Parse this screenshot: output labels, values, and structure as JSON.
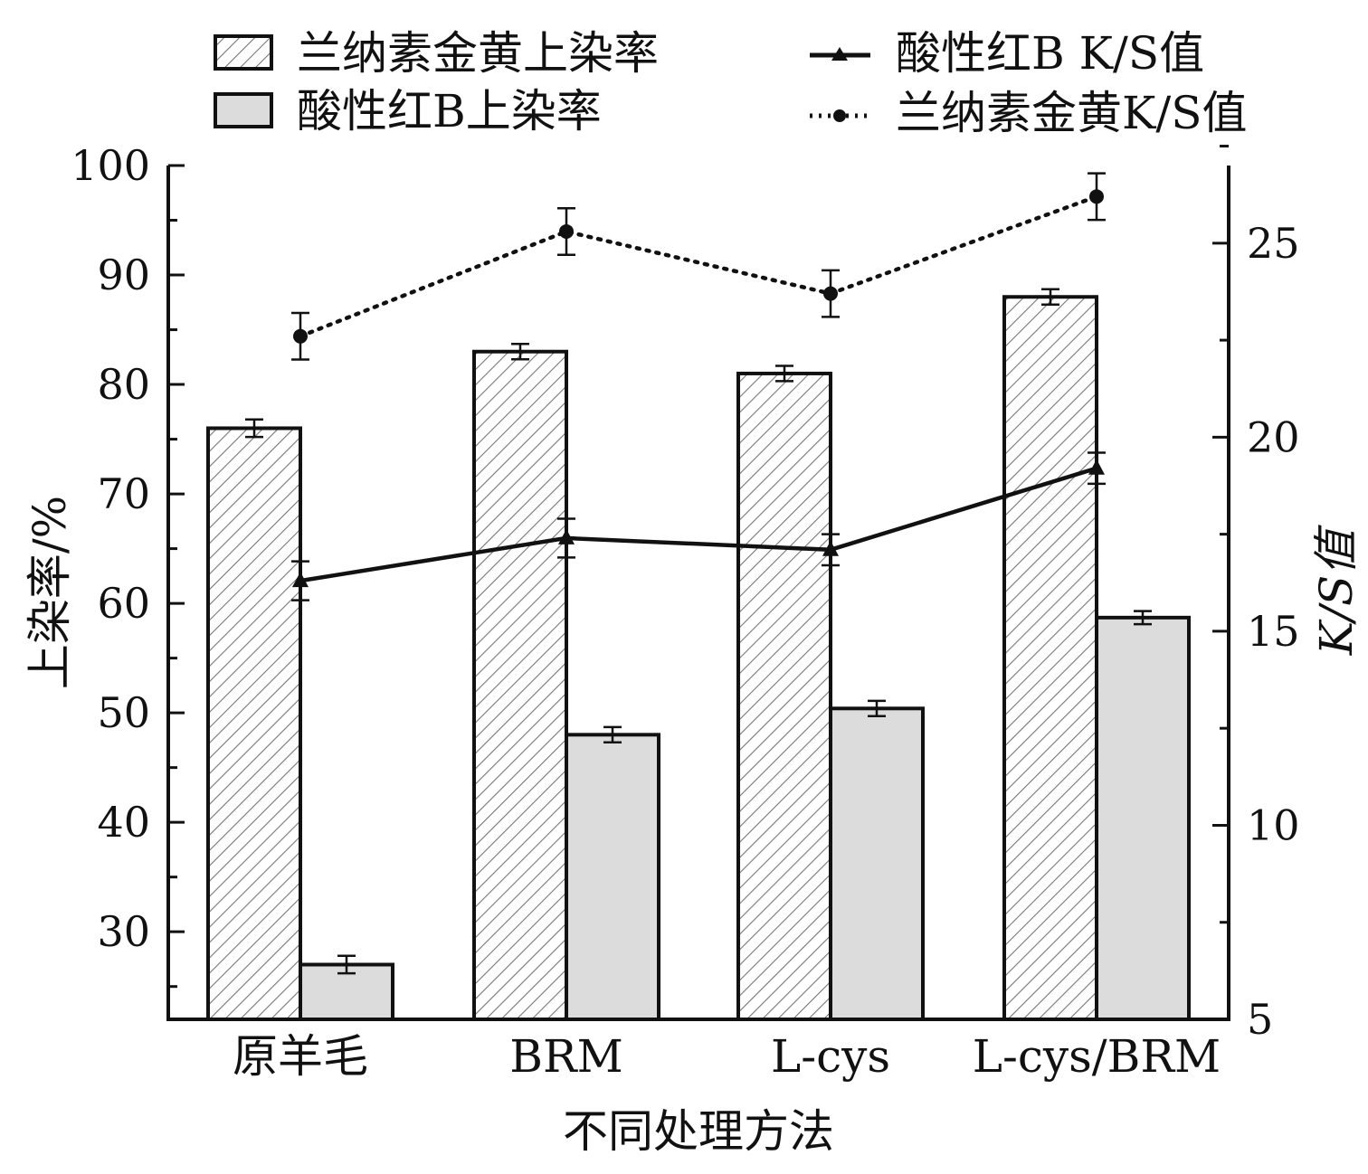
{
  "chart_data": {
    "type": "bar",
    "categories": [
      "原羊毛",
      "BRM",
      "L-cys",
      "L-cys/BRM"
    ],
    "xlabel": "不同处理方法",
    "ylabel": "上染率/%",
    "ylabel_right": "K/S值",
    "ylim": [
      22,
      100
    ],
    "ylim_right": [
      5,
      27
    ],
    "yticks": [
      30,
      40,
      50,
      60,
      70,
      80,
      90,
      100
    ],
    "yticks_right": [
      5,
      10,
      15,
      20,
      25
    ],
    "grid": false,
    "legend_position": "top",
    "series": [
      {
        "name": "兰纳素金黄上染率",
        "kind": "bar",
        "pattern": "hatched",
        "axis": "left",
        "values": [
          76.0,
          83.0,
          81.0,
          88.0
        ],
        "errors": [
          0.8,
          0.7,
          0.7,
          0.7
        ]
      },
      {
        "name": "酸性红B上染率",
        "kind": "bar",
        "pattern": "solid",
        "fill": "#dcdcdc",
        "axis": "left",
        "values": [
          27.0,
          48.0,
          50.4,
          58.7
        ],
        "errors": [
          0.8,
          0.7,
          0.7,
          0.6
        ]
      },
      {
        "name": "酸性红B K/S值",
        "kind": "line",
        "marker": "triangle",
        "line_style": "solid",
        "axis": "right",
        "values": [
          16.3,
          17.4,
          17.1,
          19.2
        ],
        "errors": [
          0.5,
          0.5,
          0.4,
          0.4
        ]
      },
      {
        "name": "兰纳素金黄K/S值",
        "kind": "line",
        "marker": "circle",
        "line_style": "dotted",
        "axis": "right",
        "values": [
          22.6,
          25.3,
          23.7,
          26.2
        ],
        "errors": [
          0.6,
          0.6,
          0.6,
          0.6
        ]
      }
    ]
  }
}
